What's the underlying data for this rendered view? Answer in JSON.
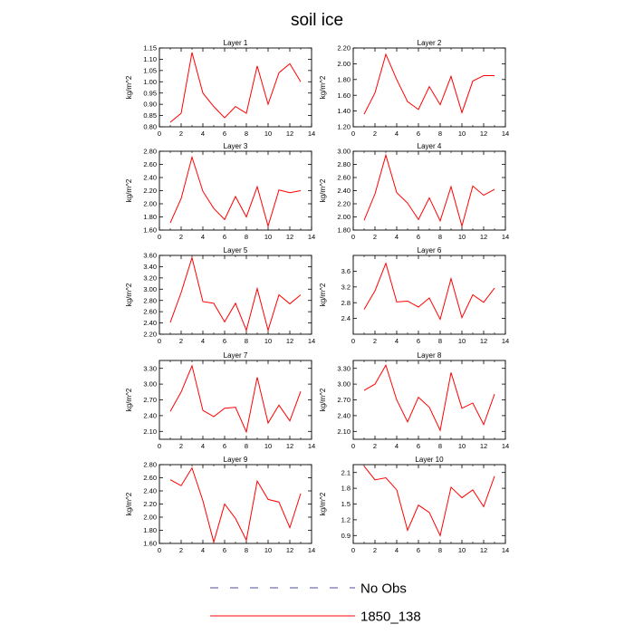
{
  "title": "soil ice",
  "chart_data": {
    "type": "line",
    "x": [
      1,
      2,
      3,
      4,
      5,
      6,
      7,
      8,
      9,
      10,
      11,
      12,
      13
    ],
    "xlim": [
      0,
      14
    ],
    "xticks": [
      0,
      2,
      4,
      6,
      8,
      10,
      12,
      14
    ],
    "ylabel": "kg/m^2",
    "line_color": "#ff0000",
    "panels": [
      {
        "title": "Layer 1",
        "ylim": [
          0.8,
          1.15
        ],
        "yticks": [
          "0.80",
          "0.85",
          "0.90",
          "0.95",
          "1.00",
          "1.05",
          "1.10",
          "1.15"
        ],
        "values": [
          0.82,
          0.86,
          1.13,
          0.95,
          0.89,
          0.84,
          0.89,
          0.86,
          1.07,
          0.9,
          1.04,
          1.08,
          1.0
        ]
      },
      {
        "title": "Layer 2",
        "ylim": [
          1.2,
          2.2
        ],
        "yticks": [
          "1.20",
          "1.40",
          "1.60",
          "1.80",
          "2.00",
          "2.20"
        ],
        "values": [
          1.36,
          1.63,
          2.12,
          1.8,
          1.52,
          1.42,
          1.71,
          1.48,
          1.84,
          1.38,
          1.78,
          1.85,
          1.85
        ]
      },
      {
        "title": "Layer 3",
        "ylim": [
          1.6,
          2.8
        ],
        "yticks": [
          "1.60",
          "1.80",
          "2.00",
          "2.20",
          "2.40",
          "2.60",
          "2.80"
        ],
        "values": [
          1.71,
          2.08,
          2.71,
          2.19,
          1.93,
          1.76,
          2.11,
          1.8,
          2.26,
          1.66,
          2.21,
          2.17,
          2.2
        ]
      },
      {
        "title": "Layer 4",
        "ylim": [
          1.8,
          3.0
        ],
        "yticks": [
          "1.80",
          "2.00",
          "2.20",
          "2.40",
          "2.60",
          "2.80",
          "3.00"
        ],
        "values": [
          1.95,
          2.35,
          2.94,
          2.37,
          2.21,
          1.96,
          2.29,
          1.94,
          2.46,
          1.86,
          2.47,
          2.33,
          2.42
        ]
      },
      {
        "title": "Layer 5",
        "ylim": [
          2.2,
          3.6
        ],
        "yticks": [
          "2.20",
          "2.40",
          "2.60",
          "2.80",
          "3.00",
          "3.20",
          "3.40",
          "3.60"
        ],
        "values": [
          2.41,
          2.94,
          3.56,
          2.78,
          2.75,
          2.42,
          2.75,
          2.27,
          3.01,
          2.27,
          2.9,
          2.74,
          2.9
        ]
      },
      {
        "title": "Layer 6",
        "ylim": [
          2.0,
          4.0
        ],
        "yticks": [
          "2.4",
          "2.8",
          "3.2",
          "3.6"
        ],
        "values": [
          2.63,
          3.1,
          3.8,
          2.82,
          2.84,
          2.69,
          2.92,
          2.38,
          3.41,
          2.42,
          3.0,
          2.81,
          3.17
        ]
      },
      {
        "title": "Layer 7",
        "ylim": [
          1.95,
          3.45
        ],
        "yticks": [
          "2.10",
          "2.40",
          "2.70",
          "3.00",
          "3.30"
        ],
        "values": [
          2.48,
          2.85,
          3.35,
          2.5,
          2.38,
          2.54,
          2.56,
          2.09,
          3.13,
          2.26,
          2.6,
          2.3,
          2.86
        ]
      },
      {
        "title": "Layer 8",
        "ylim": [
          1.95,
          3.45
        ],
        "yticks": [
          "2.10",
          "2.40",
          "2.70",
          "3.00",
          "3.30"
        ],
        "values": [
          2.88,
          3.0,
          3.36,
          2.7,
          2.28,
          2.75,
          2.56,
          2.12,
          3.22,
          2.54,
          2.64,
          2.23,
          2.81
        ]
      },
      {
        "title": "Layer 9",
        "ylim": [
          1.6,
          2.8
        ],
        "yticks": [
          "1.60",
          "1.80",
          "2.00",
          "2.20",
          "2.40",
          "2.60",
          "2.80"
        ],
        "values": [
          2.57,
          2.48,
          2.75,
          2.25,
          1.62,
          2.2,
          1.98,
          1.65,
          2.55,
          2.27,
          2.23,
          1.84,
          2.36
        ]
      },
      {
        "title": "Layer 10",
        "ylim": [
          0.75,
          2.25
        ],
        "yticks": [
          "0.9",
          "1.2",
          "1.5",
          "1.8",
          "2.1"
        ],
        "values": [
          2.22,
          1.96,
          2.0,
          1.77,
          1.0,
          1.48,
          1.34,
          0.9,
          1.82,
          1.62,
          1.77,
          1.45,
          2.03
        ]
      }
    ],
    "legend": [
      {
        "label": "No Obs",
        "style": "dashed",
        "color": "#4d4d99"
      },
      {
        "label": "1850_138",
        "style": "solid",
        "color": "#ff0000"
      }
    ]
  }
}
